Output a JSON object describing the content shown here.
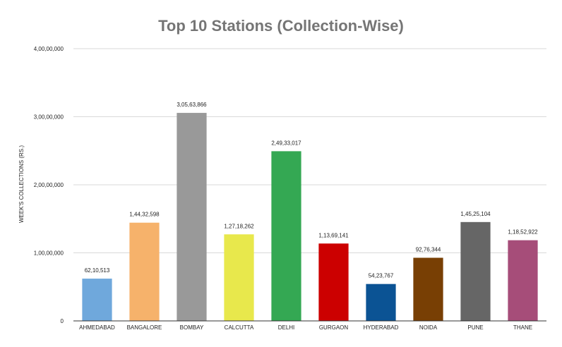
{
  "chart_data": {
    "type": "bar",
    "title": "Top 10 Stations (Collection-Wise)",
    "ylabel": "WEEK'S COLLECTIONS (RS.)",
    "xlabel": "",
    "ylim": [
      0,
      40000000
    ],
    "yticks": [
      0,
      10000000,
      20000000,
      30000000,
      40000000
    ],
    "ytick_labels": [
      "0",
      "1,00,00,000",
      "2,00,00,000",
      "3,00,00,000",
      "4,00,00,000"
    ],
    "grid": true,
    "categories": [
      "AHMEDABAD",
      "BANGALORE",
      "BOMBAY",
      "CALCUTTA",
      "DELHI",
      "GURGAON",
      "HYDERABAD",
      "NOIDA",
      "PUNE",
      "THANE"
    ],
    "values": [
      6210513,
      14432598,
      30563866,
      12718262,
      24933017,
      11369141,
      5423767,
      9276344,
      14525104,
      11852922
    ],
    "value_labels": [
      "62,10,513",
      "1,44,32,598",
      "3,05,63,866",
      "1,27,18,262",
      "2,49,33,017",
      "1,13,69,141",
      "54,23,767",
      "92,76,344",
      "1,45,25,104",
      "1,18,52,922"
    ],
    "colors": [
      "#6fa8dc",
      "#f6b26b",
      "#999999",
      "#e8e84c",
      "#34a853",
      "#cc0000",
      "#0b5394",
      "#783f04",
      "#666666",
      "#a64d79"
    ]
  }
}
